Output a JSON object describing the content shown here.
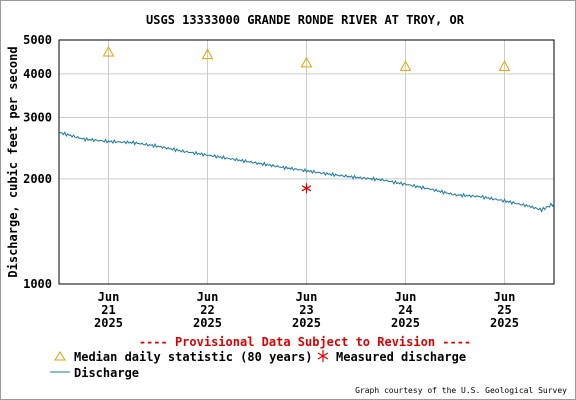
{
  "chart_data": {
    "type": "line",
    "title": "USGS 13333000 GRANDE RONDE RIVER AT TROY, OR",
    "ylabel": "Discharge, cubic feet per second",
    "xlabel": "",
    "y_scale": "log",
    "ylim": [
      1000,
      5000
    ],
    "y_ticks": [
      1000,
      2000,
      3000,
      4000,
      5000
    ],
    "y_tick_labels": [
      "1000",
      "2000",
      "3000",
      "4000",
      "5000"
    ],
    "xlim": [
      "2025-06-20T12:00",
      "2025-06-25T12:00"
    ],
    "x_ticks": [
      {
        "date": "2025-06-21",
        "month": "Jun",
        "day": "21",
        "year": "2025"
      },
      {
        "date": "2025-06-22",
        "month": "Jun",
        "day": "22",
        "year": "2025"
      },
      {
        "date": "2025-06-23",
        "month": "Jun",
        "day": "23",
        "year": "2025"
      },
      {
        "date": "2025-06-24",
        "month": "Jun",
        "day": "24",
        "year": "2025"
      },
      {
        "date": "2025-06-25",
        "month": "Jun",
        "day": "25",
        "year": "2025"
      }
    ],
    "grid": true,
    "series": [
      {
        "name": "Discharge",
        "color": "#1a7aa0",
        "x": [
          "2025-06-20T12:00",
          "2025-06-20T18:00",
          "2025-06-21T00:00",
          "2025-06-21T06:00",
          "2025-06-21T12:00",
          "2025-06-21T18:00",
          "2025-06-22T00:00",
          "2025-06-22T06:00",
          "2025-06-22T12:00",
          "2025-06-22T18:00",
          "2025-06-23T00:00",
          "2025-06-23T06:00",
          "2025-06-23T12:00",
          "2025-06-23T18:00",
          "2025-06-24T00:00",
          "2025-06-24T06:00",
          "2025-06-24T12:00",
          "2025-06-24T18:00",
          "2025-06-25T00:00",
          "2025-06-25T06:00",
          "2025-06-25T09:00",
          "2025-06-25T12:00"
        ],
        "y": [
          2720,
          2600,
          2560,
          2540,
          2480,
          2400,
          2340,
          2280,
          2220,
          2160,
          2110,
          2060,
          2020,
          1990,
          1930,
          1870,
          1800,
          1780,
          1730,
          1670,
          1630,
          1700
        ]
      },
      {
        "name": "Median daily statistic (80 years)",
        "color": "#e6a000",
        "marker": "triangle",
        "x": [
          "2025-06-21T00:00",
          "2025-06-22T00:00",
          "2025-06-23T00:00",
          "2025-06-24T00:00",
          "2025-06-25T00:00"
        ],
        "y": [
          4620,
          4540,
          4300,
          4200,
          4200
        ]
      },
      {
        "name": "Measured discharge",
        "color": "#dd0000",
        "marker": "asterisk",
        "x": [
          "2025-06-23T00:00"
        ],
        "y": [
          1880
        ]
      }
    ],
    "annotation": "---- Provisional Data Subject to Revision ----",
    "legend_position": "bottom",
    "legend": {
      "median_label": "Median daily statistic (80 years)",
      "measured_label": "Measured discharge",
      "discharge_label": "Discharge"
    },
    "credit": "Graph courtesy of the U.S. Geological Survey"
  }
}
